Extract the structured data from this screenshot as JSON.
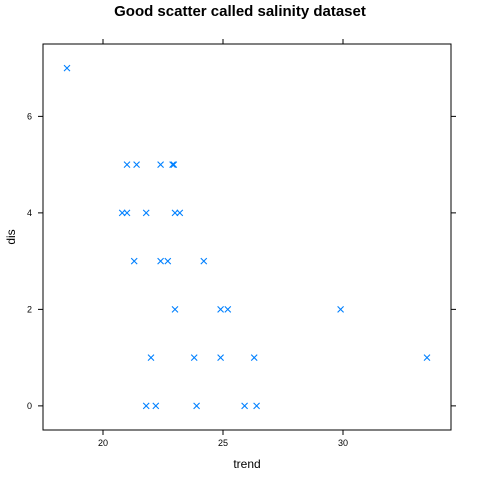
{
  "chart_data": {
    "type": "scatter",
    "title": "Good scatter called salinity dataset",
    "xlabel": "trend",
    "ylabel": "dis",
    "xlim": [
      17.5,
      34.5
    ],
    "ylim": [
      -0.5,
      7.5
    ],
    "x_ticks": [
      20,
      25,
      30
    ],
    "y_ticks": [
      0,
      2,
      4,
      6
    ],
    "marker": "x",
    "marker_color": "#0080ff",
    "grid": false,
    "points": [
      {
        "x": 18.5,
        "y": 7
      },
      {
        "x": 21.0,
        "y": 5
      },
      {
        "x": 21.4,
        "y": 5
      },
      {
        "x": 22.4,
        "y": 5
      },
      {
        "x": 22.9,
        "y": 5
      },
      {
        "x": 22.95,
        "y": 5
      },
      {
        "x": 20.8,
        "y": 4
      },
      {
        "x": 21.0,
        "y": 4
      },
      {
        "x": 21.8,
        "y": 4
      },
      {
        "x": 23.0,
        "y": 4
      },
      {
        "x": 23.2,
        "y": 4
      },
      {
        "x": 21.3,
        "y": 3
      },
      {
        "x": 22.4,
        "y": 3
      },
      {
        "x": 22.7,
        "y": 3
      },
      {
        "x": 24.2,
        "y": 3
      },
      {
        "x": 23.0,
        "y": 2
      },
      {
        "x": 24.9,
        "y": 2
      },
      {
        "x": 25.2,
        "y": 2
      },
      {
        "x": 29.9,
        "y": 2
      },
      {
        "x": 22.0,
        "y": 1
      },
      {
        "x": 23.8,
        "y": 1
      },
      {
        "x": 24.9,
        "y": 1
      },
      {
        "x": 26.3,
        "y": 1
      },
      {
        "x": 33.5,
        "y": 1
      },
      {
        "x": 21.8,
        "y": 0
      },
      {
        "x": 22.2,
        "y": 0
      },
      {
        "x": 23.9,
        "y": 0
      },
      {
        "x": 25.9,
        "y": 0
      },
      {
        "x": 26.4,
        "y": 0
      }
    ]
  }
}
